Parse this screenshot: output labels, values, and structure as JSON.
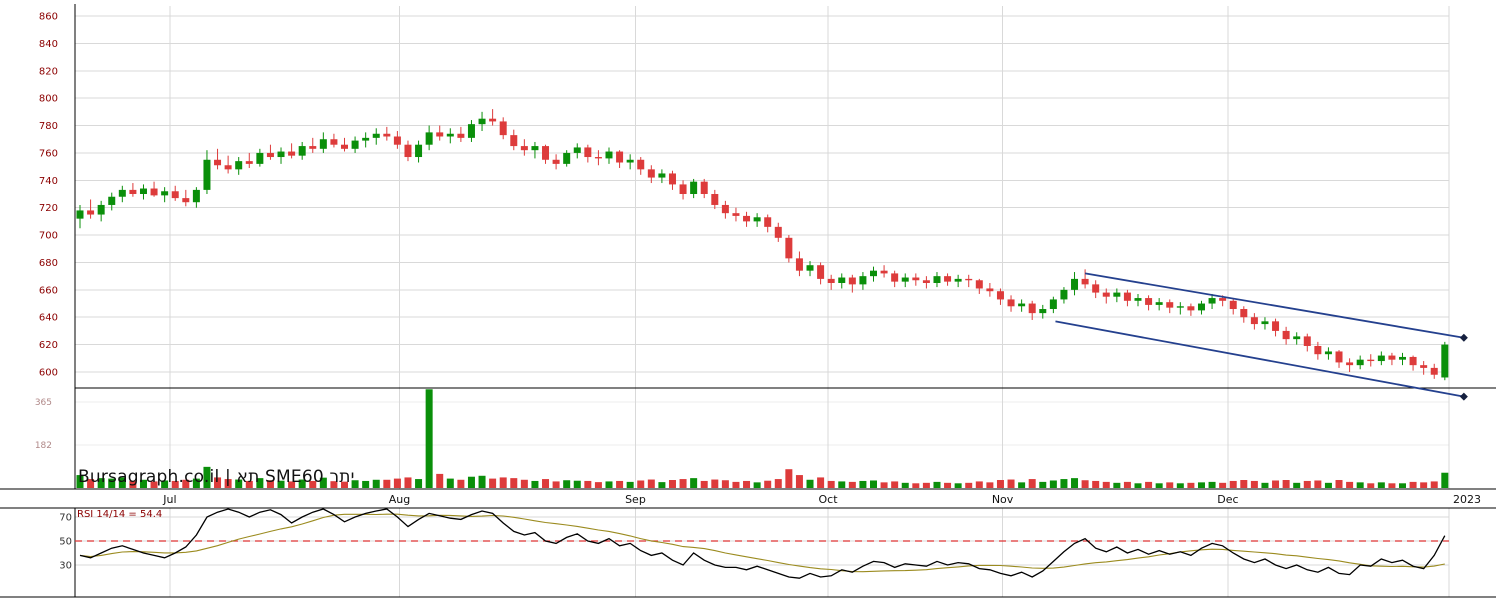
{
  "watermark": "Bursagraph.co.il | תא SME60 יתר",
  "chart_data": {
    "type": "candlestick",
    "title": "Bursagraph.co.il | תא SME60 יתר",
    "price_axis": {
      "ticks": [
        860,
        840,
        820,
        800,
        780,
        760,
        740,
        720,
        700,
        680,
        660,
        640,
        620,
        600
      ],
      "min": 588,
      "max": 868
    },
    "volume_axis": {
      "ticks": [
        365,
        182
      ]
    },
    "x_axis": {
      "months": [
        {
          "label": "Jul",
          "i": 8.5
        },
        {
          "label": "Aug",
          "i": 30.2
        },
        {
          "label": "Sep",
          "i": 52.5
        },
        {
          "label": "Oct",
          "i": 70.7
        },
        {
          "label": "Nov",
          "i": 87.2
        },
        {
          "label": "Dec",
          "i": 108.5
        },
        {
          "label": "2023",
          "i": 129.4
        }
      ]
    },
    "candles": {
      "format": [
        "open",
        "high",
        "low",
        "close",
        "volume"
      ],
      "values": [
        [
          712,
          722,
          705,
          718,
          55
        ],
        [
          718,
          726,
          712,
          715,
          38
        ],
        [
          715,
          725,
          710,
          722,
          42
        ],
        [
          722,
          731,
          718,
          728,
          40
        ],
        [
          728,
          736,
          724,
          733,
          45
        ],
        [
          733,
          738,
          728,
          730,
          30
        ],
        [
          730,
          737,
          726,
          734,
          35
        ],
        [
          734,
          739,
          728,
          729,
          28
        ],
        [
          729,
          735,
          724,
          732,
          32
        ],
        [
          732,
          736,
          725,
          727,
          30
        ],
        [
          727,
          733,
          721,
          724,
          35
        ],
        [
          724,
          735,
          720,
          733,
          40
        ],
        [
          733,
          762,
          730,
          755,
          90
        ],
        [
          755,
          763,
          748,
          751,
          45
        ],
        [
          751,
          758,
          745,
          748,
          38
        ],
        [
          748,
          757,
          744,
          754,
          36
        ],
        [
          754,
          760,
          749,
          752,
          30
        ],
        [
          752,
          763,
          750,
          760,
          42
        ],
        [
          760,
          766,
          755,
          757,
          33
        ],
        [
          757,
          764,
          752,
          761,
          31
        ],
        [
          761,
          767,
          756,
          758,
          28
        ],
        [
          758,
          768,
          755,
          765,
          36
        ],
        [
          765,
          771,
          760,
          763,
          30
        ],
        [
          763,
          775,
          760,
          770,
          44
        ],
        [
          770,
          774,
          764,
          766,
          29
        ],
        [
          766,
          771,
          761,
          763,
          27
        ],
        [
          763,
          772,
          760,
          769,
          33
        ],
        [
          769,
          775,
          764,
          771,
          30
        ],
        [
          771,
          778,
          766,
          774,
          35
        ],
        [
          774,
          779,
          769,
          772,
          35
        ],
        [
          772,
          776,
          763,
          766,
          40
        ],
        [
          766,
          769,
          754,
          757,
          45
        ],
        [
          757,
          769,
          753,
          766,
          38
        ],
        [
          766,
          780,
          762,
          775,
          420
        ],
        [
          775,
          780,
          769,
          772,
          60
        ],
        [
          772,
          778,
          767,
          774,
          40
        ],
        [
          774,
          779,
          768,
          771,
          35
        ],
        [
          771,
          784,
          768,
          781,
          48
        ],
        [
          781,
          790,
          776,
          785,
          52
        ],
        [
          785,
          792,
          780,
          783,
          40
        ],
        [
          783,
          786,
          770,
          773,
          45
        ],
        [
          773,
          777,
          762,
          765,
          42
        ],
        [
          765,
          770,
          758,
          762,
          35
        ],
        [
          762,
          768,
          756,
          765,
          30
        ],
        [
          765,
          766,
          752,
          755,
          38
        ],
        [
          755,
          759,
          748,
          752,
          28
        ],
        [
          752,
          762,
          750,
          760,
          33
        ],
        [
          760,
          767,
          756,
          764,
          31
        ],
        [
          764,
          766,
          753,
          757,
          30
        ],
        [
          757,
          762,
          751,
          756,
          25
        ],
        [
          756,
          764,
          752,
          761,
          28
        ],
        [
          761,
          762,
          749,
          753,
          30
        ],
        [
          753,
          759,
          748,
          755,
          26
        ],
        [
          755,
          757,
          744,
          748,
          32
        ],
        [
          748,
          751,
          738,
          742,
          36
        ],
        [
          742,
          748,
          738,
          745,
          25
        ],
        [
          745,
          747,
          733,
          737,
          34
        ],
        [
          737,
          740,
          726,
          730,
          38
        ],
        [
          730,
          741,
          727,
          739,
          42
        ],
        [
          739,
          741,
          727,
          730,
          30
        ],
        [
          730,
          733,
          719,
          722,
          36
        ],
        [
          722,
          725,
          712,
          716,
          33
        ],
        [
          716,
          720,
          710,
          714,
          26
        ],
        [
          714,
          717,
          706,
          710,
          30
        ],
        [
          710,
          716,
          706,
          713,
          24
        ],
        [
          713,
          715,
          702,
          706,
          31
        ],
        [
          706,
          709,
          695,
          698,
          38
        ],
        [
          698,
          700,
          680,
          683,
          80
        ],
        [
          683,
          688,
          670,
          674,
          55
        ],
        [
          674,
          681,
          670,
          678,
          35
        ],
        [
          678,
          680,
          664,
          668,
          45
        ],
        [
          668,
          671,
          660,
          665,
          30
        ],
        [
          665,
          672,
          661,
          669,
          28
        ],
        [
          669,
          671,
          658,
          664,
          26
        ],
        [
          664,
          673,
          660,
          670,
          30
        ],
        [
          670,
          677,
          666,
          674,
          32
        ],
        [
          674,
          678,
          669,
          672,
          24
        ],
        [
          672,
          674,
          662,
          666,
          28
        ],
        [
          666,
          672,
          662,
          669,
          22
        ],
        [
          669,
          672,
          663,
          667,
          20
        ],
        [
          667,
          670,
          661,
          665,
          22
        ],
        [
          665,
          673,
          662,
          670,
          26
        ],
        [
          670,
          672,
          663,
          666,
          22
        ],
        [
          666,
          671,
          662,
          668,
          20
        ],
        [
          668,
          671,
          662,
          667,
          22
        ],
        [
          667,
          668,
          657,
          661,
          28
        ],
        [
          661,
          665,
          655,
          659,
          24
        ],
        [
          659,
          661,
          649,
          653,
          34
        ],
        [
          653,
          656,
          644,
          648,
          36
        ],
        [
          648,
          653,
          644,
          650,
          24
        ],
        [
          650,
          652,
          638,
          643,
          38
        ],
        [
          643,
          649,
          639,
          646,
          26
        ],
        [
          646,
          655,
          643,
          653,
          32
        ],
        [
          653,
          662,
          650,
          660,
          38
        ],
        [
          660,
          673,
          656,
          668,
          42
        ],
        [
          668,
          675,
          661,
          664,
          33
        ],
        [
          664,
          667,
          654,
          658,
          30
        ],
        [
          658,
          661,
          650,
          655,
          26
        ],
        [
          655,
          661,
          651,
          658,
          22
        ],
        [
          658,
          660,
          648,
          652,
          26
        ],
        [
          652,
          657,
          648,
          654,
          20
        ],
        [
          654,
          656,
          645,
          649,
          26
        ],
        [
          649,
          654,
          645,
          651,
          20
        ],
        [
          651,
          653,
          643,
          647,
          24
        ],
        [
          647,
          651,
          642,
          648,
          20
        ],
        [
          648,
          650,
          641,
          645,
          22
        ],
        [
          645,
          652,
          642,
          650,
          24
        ],
        [
          650,
          657,
          646,
          654,
          26
        ],
        [
          654,
          656,
          648,
          652,
          22
        ],
        [
          652,
          654,
          642,
          646,
          30
        ],
        [
          646,
          648,
          636,
          640,
          34
        ],
        [
          640,
          643,
          631,
          635,
          30
        ],
        [
          635,
          640,
          631,
          637,
          22
        ],
        [
          637,
          639,
          626,
          630,
          32
        ],
        [
          630,
          633,
          620,
          624,
          34
        ],
        [
          624,
          629,
          620,
          626,
          22
        ],
        [
          626,
          628,
          615,
          619,
          30
        ],
        [
          619,
          622,
          609,
          613,
          32
        ],
        [
          613,
          618,
          609,
          615,
          22
        ],
        [
          615,
          616,
          603,
          607,
          34
        ],
        [
          607,
          610,
          600,
          605,
          26
        ],
        [
          605,
          612,
          602,
          609,
          24
        ],
        [
          609,
          613,
          604,
          608,
          20
        ],
        [
          608,
          615,
          605,
          612,
          24
        ],
        [
          612,
          614,
          605,
          609,
          20
        ],
        [
          609,
          614,
          605,
          611,
          20
        ],
        [
          611,
          612,
          601,
          605,
          26
        ],
        [
          605,
          608,
          598,
          603,
          24
        ],
        [
          603,
          606,
          595,
          598,
          28
        ],
        [
          596,
          622,
          594,
          620,
          65
        ]
      ]
    },
    "trend_channel": {
      "upper": {
        "i1": 95,
        "p1": 672,
        "i2": 130.8,
        "p2": 625
      },
      "lower": {
        "i1": 92.2,
        "p1": 637,
        "i2": 130.8,
        "p2": 582
      }
    },
    "rsi": {
      "label": "RSI 14/14 = 54.4",
      "period": "14/14",
      "last": 54.4,
      "ticks": [
        70,
        50,
        30
      ],
      "midline": 50,
      "values": [
        38,
        36,
        40,
        44,
        46,
        43,
        40,
        38,
        36,
        40,
        45,
        55,
        70,
        74,
        77,
        74,
        70,
        74,
        76,
        72,
        65,
        70,
        74,
        78,
        72,
        66,
        70,
        73,
        75,
        78,
        70,
        62,
        68,
        73,
        71,
        69,
        68,
        72,
        75,
        73,
        65,
        58,
        55,
        57,
        50,
        48,
        53,
        56,
        50,
        48,
        52,
        46,
        48,
        42,
        38,
        40,
        34,
        30,
        40,
        34,
        30,
        28,
        28,
        26,
        29,
        26,
        23,
        20,
        19,
        23,
        20,
        21,
        26,
        24,
        29,
        33,
        32,
        28,
        31,
        30,
        29,
        33,
        30,
        32,
        31,
        27,
        26,
        23,
        21,
        24,
        20,
        25,
        33,
        41,
        48,
        52,
        44,
        41,
        45,
        40,
        43,
        39,
        42,
        39,
        41,
        38,
        44,
        48,
        46,
        40,
        35,
        32,
        35,
        30,
        27,
        30,
        26,
        24,
        28,
        23,
        22,
        30,
        29,
        35,
        32,
        34,
        29,
        27,
        38,
        54.4
      ]
    },
    "colors": {
      "up": "#0a8f0a",
      "down": "#dd3b3b",
      "trend": "#24408e",
      "marker": "#16203f",
      "rsi_line": "#000000",
      "rsi_ma": "#9b8b1f",
      "rsi_mid": "#dd3333",
      "grid": "#d9d9d9",
      "grid_faint": "#ececec",
      "divider": "#000000",
      "axis_price": "#8b0000",
      "axis_volume": "#b08888",
      "axis_rsi": "#333333",
      "axis_month": "#111111"
    }
  }
}
